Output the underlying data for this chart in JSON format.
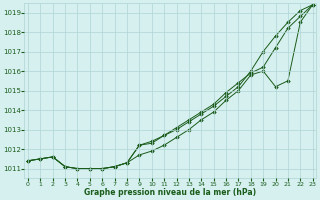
{
  "xlabel": "Graphe pression niveau de la mer (hPa)",
  "ylim": [
    1010.5,
    1019.5
  ],
  "xlim": [
    -0.3,
    23.3
  ],
  "yticks": [
    1011,
    1012,
    1013,
    1014,
    1015,
    1016,
    1017,
    1018,
    1019
  ],
  "xticks": [
    0,
    1,
    2,
    3,
    4,
    5,
    6,
    7,
    8,
    9,
    10,
    11,
    12,
    13,
    14,
    15,
    16,
    17,
    18,
    19,
    20,
    21,
    22,
    23
  ],
  "background_color": "#d6f0f0",
  "grid_color": "#b0d4d4",
  "line_color": "#1a5c1a",
  "hours": [
    0,
    1,
    2,
    3,
    4,
    5,
    6,
    7,
    8,
    9,
    10,
    11,
    12,
    13,
    14,
    15,
    16,
    17,
    18,
    19,
    20,
    21,
    22,
    23
  ],
  "line1": [
    1011.4,
    1011.5,
    1011.6,
    1011.1,
    1011.0,
    1011.0,
    1011.0,
    1011.1,
    1011.3,
    1012.2,
    1012.3,
    1012.7,
    1013.0,
    1013.4,
    1013.8,
    1014.2,
    1014.7,
    1015.2,
    1016.0,
    1017.0,
    1017.8,
    1018.5,
    1019.1,
    1019.4
  ],
  "line2": [
    1011.4,
    1011.5,
    1011.6,
    1011.1,
    1011.0,
    1011.0,
    1011.0,
    1011.1,
    1011.3,
    1011.7,
    1011.9,
    1012.2,
    1012.6,
    1013.0,
    1013.5,
    1013.9,
    1014.5,
    1015.0,
    1015.8,
    1016.0,
    1015.2,
    1015.5,
    1018.5,
    1019.4
  ],
  "line3": [
    1011.4,
    1011.5,
    1011.6,
    1011.1,
    1011.0,
    1011.0,
    1011.0,
    1011.1,
    1011.3,
    1012.2,
    1012.4,
    1012.7,
    1013.1,
    1013.5,
    1013.9,
    1014.3,
    1014.9,
    1015.4,
    1015.9,
    1016.2,
    1017.2,
    1018.2,
    1018.8,
    1019.4
  ]
}
